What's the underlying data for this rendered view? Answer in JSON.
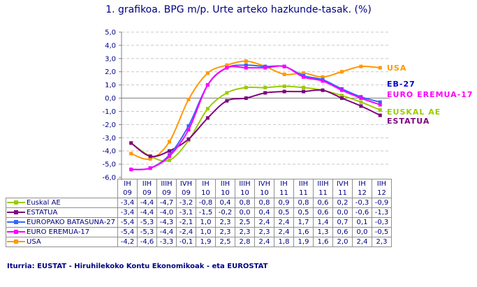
{
  "title": "1. grafikoa. BPG m/p. Urte arteko hazkunde-tasak. (%)",
  "source": "Iturria: EUSTAT - Hiruhilekoko Kontu Ekonomikoak - eta EUROSTAT",
  "colors": {
    "euskal_ae": "#99cc00",
    "estatua": "#800080",
    "eb27": "#3366ff",
    "euro17": "#ff00ff",
    "usa": "#ff9900",
    "axis": "#808080",
    "text": "#000080"
  },
  "end_labels": {
    "usa": "USA",
    "eb27": "EB-27",
    "euro17": "EURO EREMUA-17",
    "euskal_ae": "EUSKAL AE",
    "estatua": "ESTATUA"
  },
  "chart_data": {
    "type": "line",
    "title": "1. grafikoa. BPG m/p. Urte arteko hazkunde-tasak. (%)",
    "xlabel": "",
    "ylabel": "",
    "ylim": [
      -6.0,
      5.0
    ],
    "yticks": [
      "5,0",
      "4,0",
      "3,0",
      "2,0",
      "1,0",
      "0,0",
      "-1,0",
      "-2,0",
      "-3,0",
      "-4,0",
      "-5,0",
      "-6,0"
    ],
    "grid": true,
    "legend_position": "data table below + right end labels",
    "categories": [
      {
        "q": "IH",
        "y": "09"
      },
      {
        "q": "IIH",
        "y": "09"
      },
      {
        "q": "IIIH",
        "y": "09"
      },
      {
        "q": "IVH",
        "y": "09"
      },
      {
        "q": "IH",
        "y": "10"
      },
      {
        "q": "IIH",
        "y": "10"
      },
      {
        "q": "IIIH",
        "y": "10"
      },
      {
        "q": "IVH",
        "y": "10"
      },
      {
        "q": "IH",
        "y": "11"
      },
      {
        "q": "IIH",
        "y": "11"
      },
      {
        "q": "IIIH",
        "y": "11"
      },
      {
        "q": "IVH",
        "y": "11"
      },
      {
        "q": "IH",
        "y": "12"
      },
      {
        "q": "IIH",
        "y": "12"
      }
    ],
    "series": [
      {
        "key": "euskal_ae",
        "name": "Euskal AE",
        "values": [
          -3.4,
          -4.4,
          -4.7,
          -3.2,
          -0.8,
          0.4,
          0.8,
          0.8,
          0.9,
          0.8,
          0.6,
          0.2,
          -0.3,
          -0.9
        ],
        "labels": [
          "-3,4",
          "-4,4",
          "-4,7",
          "-3,2",
          "-0,8",
          "0,4",
          "0,8",
          "0,8",
          "0,9",
          "0,8",
          "0,6",
          "0,2",
          "-0,3",
          "-0,9"
        ]
      },
      {
        "key": "estatua",
        "name": "ESTATUA",
        "values": [
          -3.4,
          -4.4,
          -4.0,
          -3.1,
          -1.5,
          -0.2,
          0.0,
          0.4,
          0.5,
          0.5,
          0.6,
          0.0,
          -0.6,
          -1.3
        ],
        "labels": [
          "-3,4",
          "-4,4",
          "-4,0",
          "-3,1",
          "-1,5",
          "-0,2",
          "0,0",
          "0,4",
          "0,5",
          "0,5",
          "0,6",
          "0,0",
          "-0,6",
          "-1,3"
        ]
      },
      {
        "key": "eb27",
        "name": "EUROPAKO BATASUNA-27",
        "values": [
          -5.4,
          -5.3,
          -4.3,
          -2.1,
          1.0,
          2.3,
          2.5,
          2.4,
          2.4,
          1.7,
          1.4,
          0.7,
          0.1,
          -0.3
        ],
        "labels": [
          "-5,4",
          "-5,3",
          "-4,3",
          "-2,1",
          "1,0",
          "2,3",
          "2,5",
          "2,4",
          "2,4",
          "1,7",
          "1,4",
          "0,7",
          "0,1",
          "-0,3"
        ]
      },
      {
        "key": "euro17",
        "name": "EURO EREMUA-17",
        "values": [
          -5.4,
          -5.3,
          -4.4,
          -2.4,
          1.0,
          2.3,
          2.3,
          2.3,
          2.4,
          1.6,
          1.3,
          0.6,
          0.0,
          -0.5
        ],
        "labels": [
          "-5,4",
          "-5,3",
          "-4,4",
          "-2,4",
          "1,0",
          "2,3",
          "2,3",
          "2,3",
          "2,4",
          "1,6",
          "1,3",
          "0,6",
          "0,0",
          "-0,5"
        ]
      },
      {
        "key": "usa",
        "name": "USA",
        "values": [
          -4.2,
          -4.6,
          -3.3,
          -0.1,
          1.9,
          2.5,
          2.8,
          2.4,
          1.8,
          1.9,
          1.6,
          2.0,
          2.4,
          2.3
        ],
        "labels": [
          "-4,2",
          "-4,6",
          "-3,3",
          "-0,1",
          "1,9",
          "2,5",
          "2,8",
          "2,4",
          "1,8",
          "1,9",
          "1,6",
          "2,0",
          "2,4",
          "2,3"
        ]
      }
    ]
  }
}
